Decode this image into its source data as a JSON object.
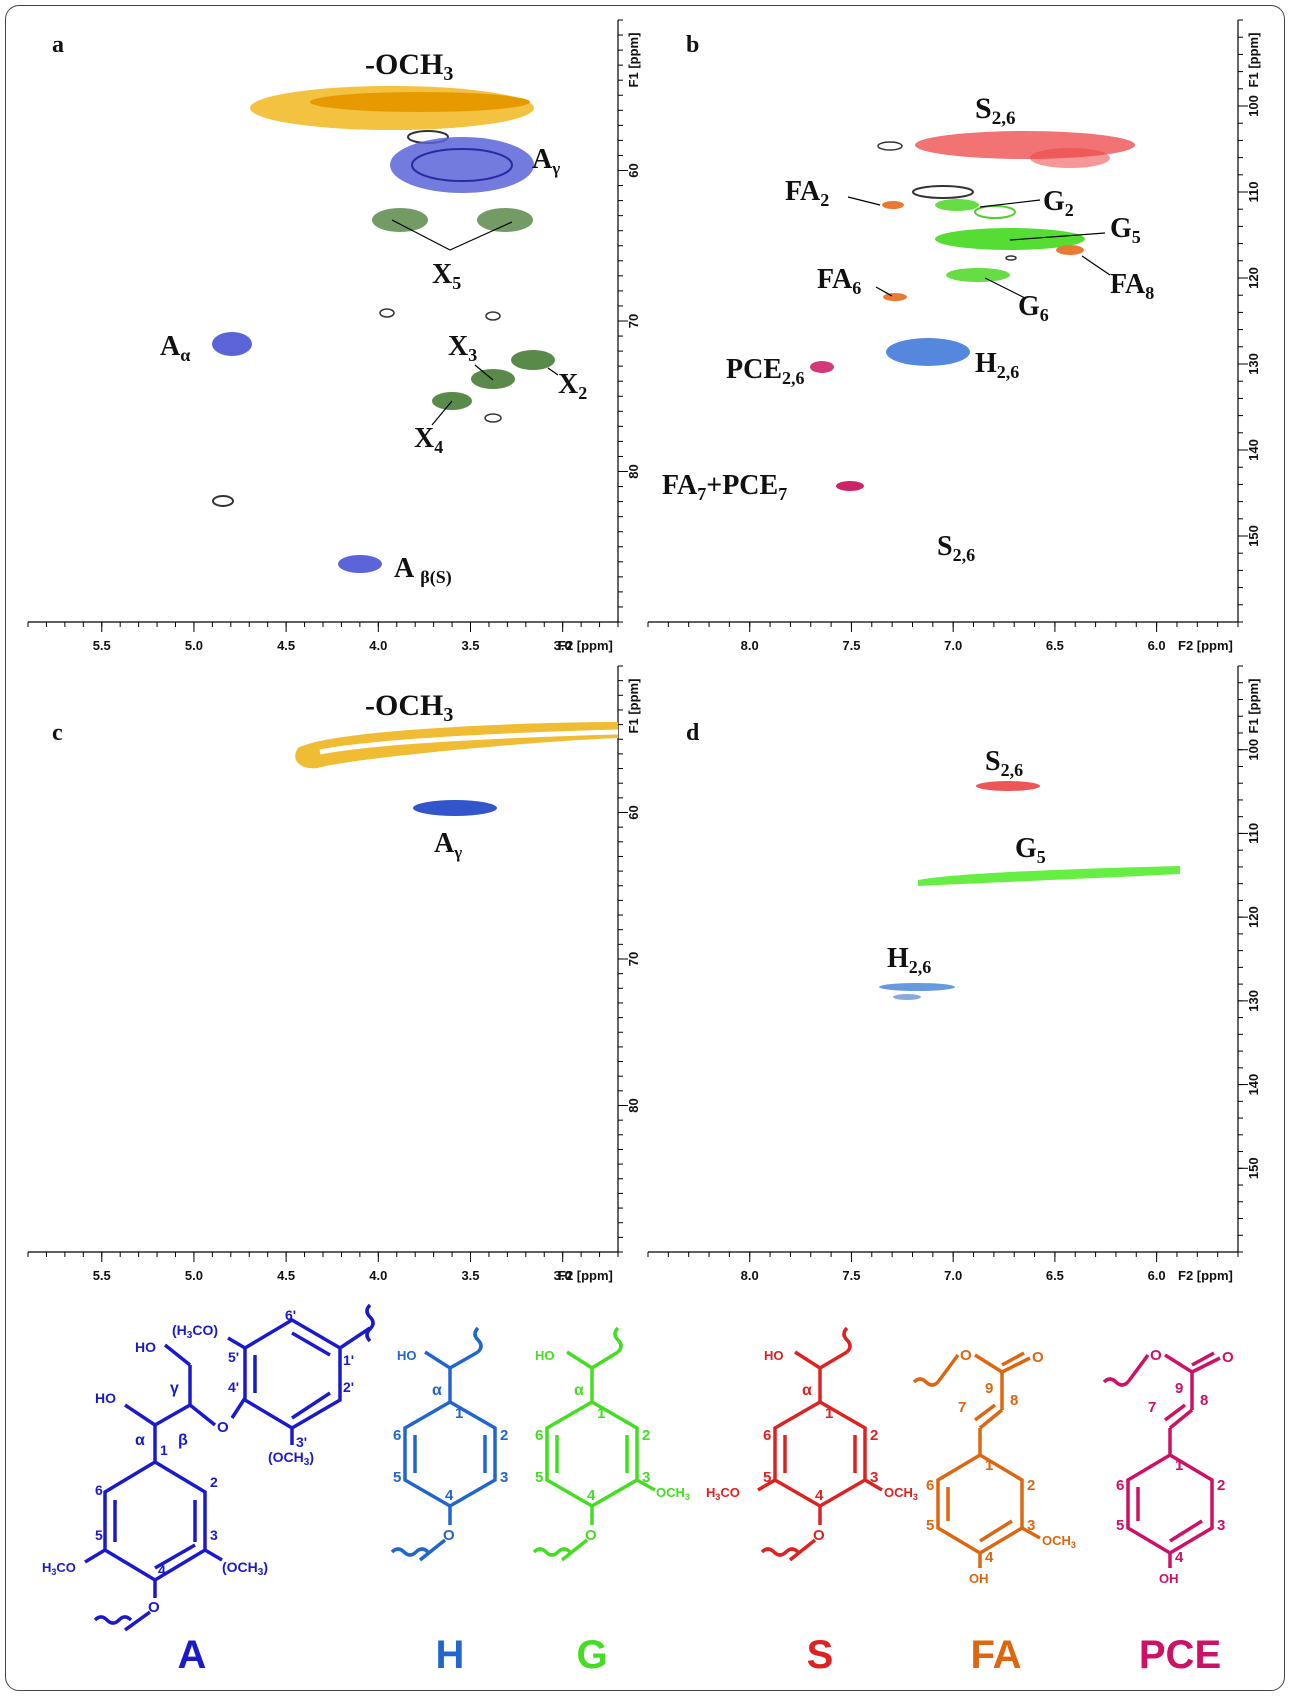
{
  "chart_data": [
    {
      "panel": "a",
      "type": "heatmap",
      "xlabel": "F2 [ppm]",
      "ylabel": "F1 [ppm]",
      "xlim": [
        5.9,
        2.7
      ],
      "ylim": [
        50,
        90
      ],
      "xticks": [
        5.5,
        5.0,
        4.5,
        4.0,
        3.5,
        3.0
      ],
      "yticks": [
        60,
        70,
        80
      ],
      "peaks": [
        {
          "label": "-OCH3",
          "x": 3.9,
          "y": 55.8,
          "color": "#e8b020"
        },
        {
          "label": "Aγ",
          "x": 3.55,
          "y": 59.8,
          "color": "#3344cc"
        },
        {
          "label": "X5",
          "x": 3.65,
          "y": 63.5,
          "color": "#5a8a4a"
        },
        {
          "label": "X5",
          "x": 3.05,
          "y": 63.5,
          "color": "#5a8a4a"
        },
        {
          "label": "Aα",
          "x": 4.85,
          "y": 72.0,
          "color": "#3344cc"
        },
        {
          "label": "X3",
          "x": 3.3,
          "y": 73.9,
          "color": "#5a8a4a"
        },
        {
          "label": "X2",
          "x": 3.05,
          "y": 72.8,
          "color": "#5a8a4a"
        },
        {
          "label": "X4",
          "x": 3.5,
          "y": 75.0,
          "color": "#5a8a4a"
        },
        {
          "label": "Aβ(S)",
          "x": 4.0,
          "y": 86.0,
          "color": "#3344cc"
        }
      ]
    },
    {
      "panel": "b",
      "type": "heatmap",
      "xlabel": "F2 [ppm]",
      "ylabel": "F1 [ppm]",
      "xlim": [
        8.5,
        5.6
      ],
      "ylim": [
        90,
        160
      ],
      "xticks": [
        8.0,
        7.5,
        7.0,
        6.5,
        6.0
      ],
      "yticks": [
        100,
        110,
        120,
        130,
        140,
        150
      ],
      "peaks": [
        {
          "label": "S2,6",
          "x": 6.65,
          "y": 104.0,
          "color": "#dd2222"
        },
        {
          "label": "FA2",
          "x": 7.3,
          "y": 111.0,
          "color": "#dd6622"
        },
        {
          "label": "G2",
          "x": 6.95,
          "y": 111.2,
          "color": "#55dd33"
        },
        {
          "label": "G5",
          "x": 6.75,
          "y": 115.2,
          "color": "#55dd33"
        },
        {
          "label": "FA8",
          "x": 6.35,
          "y": 116.2,
          "color": "#dd6622"
        },
        {
          "label": "FA6",
          "x": 7.1,
          "y": 122.8,
          "color": "#dd6622"
        },
        {
          "label": "G6",
          "x": 6.9,
          "y": 119.3,
          "color": "#55dd33"
        },
        {
          "label": "H2,6",
          "x": 7.1,
          "y": 127.5,
          "color": "#4477cc"
        },
        {
          "label": "PCE2,6",
          "x": 7.5,
          "y": 130.7,
          "color": "#cc2266"
        },
        {
          "label": "FA7+PCE7",
          "x": 7.45,
          "y": 145.5,
          "color": "#cc2266"
        }
      ]
    },
    {
      "panel": "c",
      "type": "heatmap",
      "xlabel": "F2 [ppm]",
      "ylabel": "F1 [ppm]",
      "xlim": [
        5.9,
        2.7
      ],
      "ylim": [
        50,
        90
      ],
      "xticks": [
        5.5,
        5.0,
        4.5,
        4.0,
        3.5,
        3.0
      ],
      "yticks": [
        60,
        70,
        80
      ],
      "peaks": [
        {
          "label": "-OCH3",
          "x": 3.5,
          "y": 55.5,
          "color": "#e8b020"
        },
        {
          "label": "Aγ",
          "x": 3.55,
          "y": 59.6,
          "color": "#3344cc"
        }
      ]
    },
    {
      "panel": "d",
      "type": "heatmap",
      "xlabel": "F2 [ppm]",
      "ylabel": "F1 [ppm]",
      "xlim": [
        8.5,
        5.6
      ],
      "ylim": [
        90,
        160
      ],
      "xticks": [
        8.0,
        7.5,
        7.0,
        6.5,
        6.0
      ],
      "yticks": [
        100,
        110,
        120,
        130,
        140,
        150
      ],
      "peaks": [
        {
          "label": "S2,6",
          "x": 6.65,
          "y": 103.5,
          "color": "#dd2222"
        },
        {
          "label": "G5",
          "x": 6.4,
          "y": 114.5,
          "color": "#55dd33"
        },
        {
          "label": "H2,6",
          "x": 7.15,
          "y": 127.0,
          "color": "#4477cc"
        }
      ]
    }
  ],
  "panels": {
    "a": {
      "letter": "a",
      "labels": {
        "och3": "-OCH",
        "och3_sub": "3",
        "ag": "A",
        "ag_sub": "γ",
        "x5": "X",
        "x5_sub": "5",
        "aa": "A",
        "aa_sub": "α",
        "x3": "X",
        "x3_sub": "3",
        "x2": "X",
        "x2_sub": "2",
        "x4": "X",
        "x4_sub": "4",
        "ab": "A",
        "ab_sub": "β(S)"
      }
    },
    "b": {
      "letter": "b",
      "labels": {
        "s26": "S",
        "s26_sub": "2,6",
        "fa2": "FA",
        "fa2_sub": "2",
        "g2": "G",
        "g2_sub": "2",
        "g5": "G",
        "g5_sub": "5",
        "fa6": "FA",
        "fa6_sub": "6",
        "fa8": "FA",
        "fa8_sub": "8",
        "g6": "G",
        "g6_sub": "6",
        "h26": "H",
        "h26_sub": "2,6",
        "pce26": "PCE",
        "pce26_sub": "2,6",
        "fa7a": "FA",
        "fa7a_sub": "7",
        "fa7b": "+PCE",
        "fa7b_sub": "7",
        "s26b": "S",
        "s26b_sub": "2,6"
      }
    },
    "c": {
      "letter": "c",
      "labels": {
        "och3": "-OCH",
        "och3_sub": "3",
        "ag": "A",
        "ag_sub": "γ"
      }
    },
    "d": {
      "letter": "d",
      "labels": {
        "s26": "S",
        "s26_sub": "2,6",
        "g5": "G",
        "g5_sub": "5",
        "h26": "H",
        "h26_sub": "2,6"
      }
    }
  },
  "axes": {
    "f1": "F1 [ppm]",
    "f2": "F2 [ppm]"
  },
  "structures": {
    "A": {
      "name": "A",
      "color": "#1a1acc",
      "ho1": "HO",
      "ho2": "HO",
      "gamma": "γ",
      "alpha": "α",
      "beta": "β",
      "o": "O",
      "h3co_top": "(H",
      "h3co_top2": "3",
      "h3co_top3": "CO)",
      "n6p": "6'",
      "n5p": "5'",
      "n4p": "4'",
      "n1p": "1'",
      "n2p": "2'",
      "n3p": "3'",
      "och3p": "(OCH",
      "och3p2": "3",
      "och3p3": ")",
      "n1": "1",
      "n2": "2",
      "n3": "3",
      "n4": "4",
      "n5": "5",
      "n6": "6",
      "h3co": "H",
      "h3co2": "3",
      "h3co3": "CO",
      "och3": "(OCH",
      "och32": "3",
      "och33": ")",
      "o4": "O"
    },
    "H": {
      "name": "H",
      "color": "#2266cc",
      "ho": "HO",
      "alpha": "α",
      "n1": "1",
      "n2": "2",
      "n3": "3",
      "n4": "4",
      "n5": "5",
      "n6": "6",
      "o": "O"
    },
    "G": {
      "name": "G",
      "color": "#44dd22",
      "ho": "HO",
      "alpha": "α",
      "n1": "1",
      "n2": "2",
      "n3": "3",
      "n4": "4",
      "n5": "5",
      "n6": "6",
      "o": "O",
      "och3": "OCH",
      "och3s": "3"
    },
    "S": {
      "name": "S",
      "color": "#dd2222",
      "ho": "HO",
      "alpha": "α",
      "n1": "1",
      "n2": "2",
      "n3": "3",
      "n4": "4",
      "n5": "5",
      "n6": "6",
      "o": "O",
      "och3": "OCH",
      "och3s": "3",
      "h3co": "H",
      "h3cos": "3",
      "h3co2": "CO"
    },
    "FA": {
      "name": "FA",
      "color": "#dd6611",
      "o1": "O",
      "o2": "O",
      "n9": "9",
      "n8": "8",
      "n7": "7",
      "n1": "1",
      "n2": "2",
      "n3": "3",
      "n4": "4",
      "n5": "5",
      "n6": "6",
      "och3": "OCH",
      "och3s": "3",
      "oh": "OH"
    },
    "PCE": {
      "name": "PCE",
      "color": "#cc1166",
      "o1": "O",
      "o2": "O",
      "n9": "9",
      "n8": "8",
      "n7": "7",
      "n1": "1",
      "n2": "2",
      "n3": "3",
      "n4": "4",
      "n5": "5",
      "n6": "6",
      "oh": "OH"
    }
  }
}
